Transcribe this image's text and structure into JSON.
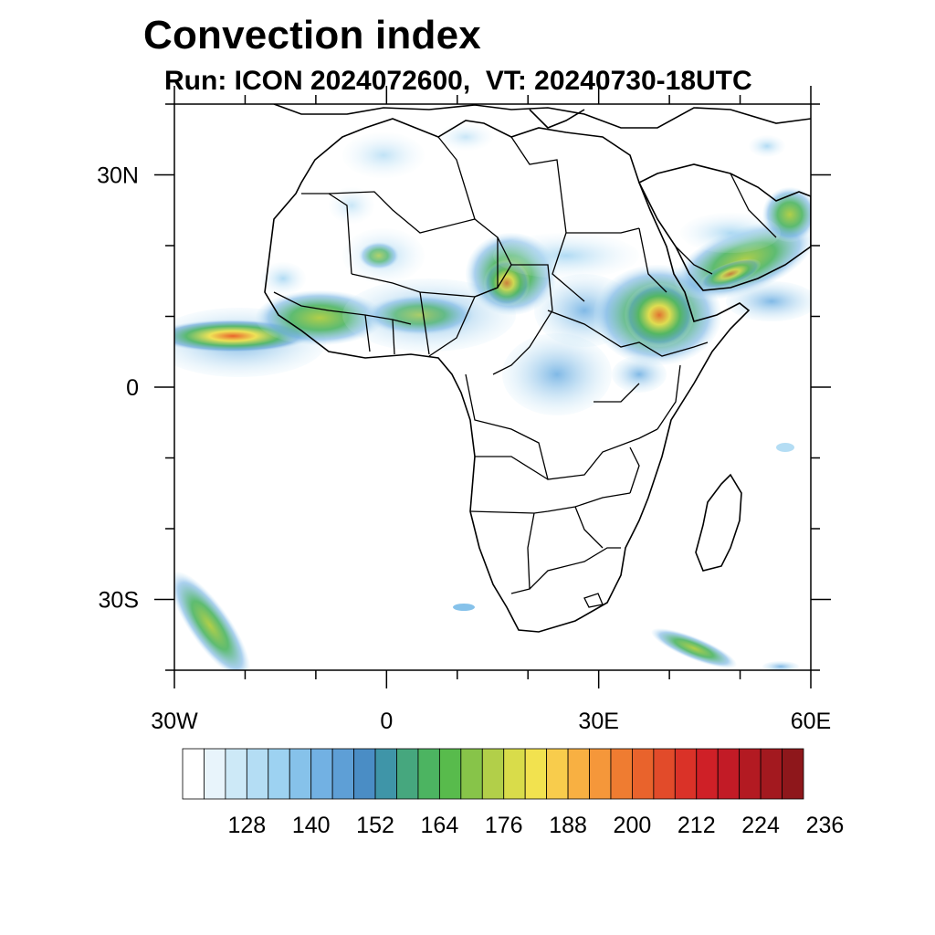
{
  "title": "Convection index",
  "subtitle": "Run: ICON 2024072600,  VT: 20240730-18UTC",
  "map": {
    "lon_range": [
      -30,
      60
    ],
    "lat_range": [
      -40,
      40
    ],
    "lon_ticks": [
      {
        "value": -30,
        "label": "30W"
      },
      {
        "value": 0,
        "label": "0"
      },
      {
        "value": 30,
        "label": "30E"
      },
      {
        "value": 60,
        "label": "60E"
      }
    ],
    "lat_ticks": [
      {
        "value": 30,
        "label": "30N"
      },
      {
        "value": 0,
        "label": "0"
      },
      {
        "value": -30,
        "label": "30S"
      }
    ]
  },
  "colorbar": {
    "colors": [
      "#ffffff",
      "#e8f4fb",
      "#cde9f7",
      "#b4ddf4",
      "#9dd2f1",
      "#86c2ea",
      "#72b1e3",
      "#5e9fd6",
      "#4a8dc5",
      "#3f95a8",
      "#46a77e",
      "#4cb461",
      "#58bb4c",
      "#87c449",
      "#b2cf49",
      "#d9dc4a",
      "#f2e24f",
      "#f8cc4c",
      "#f8b042",
      "#f5973a",
      "#ef7c31",
      "#e9632c",
      "#e24b2a",
      "#da3228",
      "#cf2027",
      "#c21b26",
      "#b31a22",
      "#a3191f",
      "#8e171b"
    ],
    "labels": [
      "128",
      "140",
      "152",
      "164",
      "176",
      "188",
      "200",
      "212",
      "224",
      "236"
    ]
  }
}
